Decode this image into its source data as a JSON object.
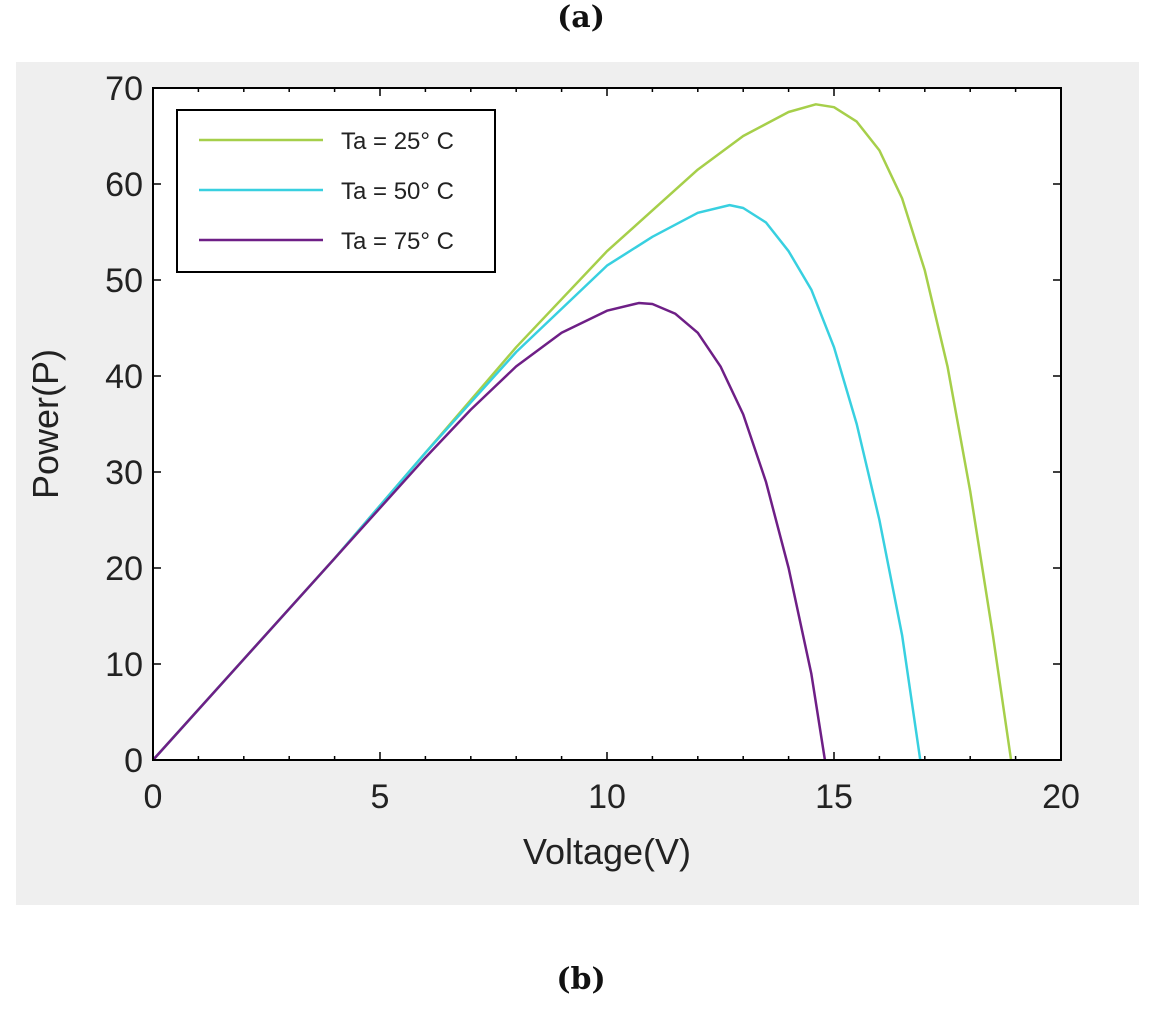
{
  "captions": {
    "top": "(a)",
    "bottom": "(b)"
  },
  "chart_data": {
    "type": "line",
    "title": "",
    "xlabel": "Voltage(V)",
    "ylabel": "Power(P)",
    "xlim": [
      0,
      20
    ],
    "ylim": [
      0,
      70
    ],
    "xticks": [
      0,
      5,
      10,
      15,
      20
    ],
    "yticks": [
      0,
      10,
      20,
      30,
      40,
      50,
      60,
      70
    ],
    "grid": false,
    "legend_position": "top-left",
    "series": [
      {
        "name": "Ta = 25° C",
        "color": "#a6cf4a",
        "x": [
          0,
          2,
          4,
          6,
          8,
          10,
          12,
          13,
          14,
          14.6,
          15,
          15.5,
          16,
          16.5,
          17,
          17.5,
          18,
          18.5,
          18.9
        ],
        "y": [
          0,
          10.5,
          21,
          32,
          43,
          53,
          61.5,
          65,
          67.5,
          68.3,
          68,
          66.5,
          63.5,
          58.5,
          51,
          41,
          28,
          13,
          0
        ]
      },
      {
        "name": "Ta = 50° C",
        "color": "#38d0e0",
        "x": [
          0,
          2,
          4,
          6,
          8,
          10,
          11,
          12,
          12.7,
          13,
          13.5,
          14,
          14.5,
          15,
          15.5,
          16,
          16.5,
          16.9
        ],
        "y": [
          0,
          10.5,
          21,
          32,
          42.5,
          51.5,
          54.5,
          57,
          57.8,
          57.5,
          56,
          53,
          49,
          43,
          35,
          25,
          13,
          0
        ]
      },
      {
        "name": "Ta = 75° C",
        "color": "#6e1f86",
        "x": [
          0,
          2,
          4,
          6,
          7,
          8,
          9,
          10,
          10.7,
          11,
          11.5,
          12,
          12.5,
          13,
          13.5,
          14,
          14.5,
          14.8
        ],
        "y": [
          0,
          10.5,
          21,
          31.5,
          36.5,
          41,
          44.5,
          46.8,
          47.6,
          47.5,
          46.5,
          44.5,
          41,
          36,
          29,
          20,
          9,
          0
        ]
      }
    ]
  }
}
